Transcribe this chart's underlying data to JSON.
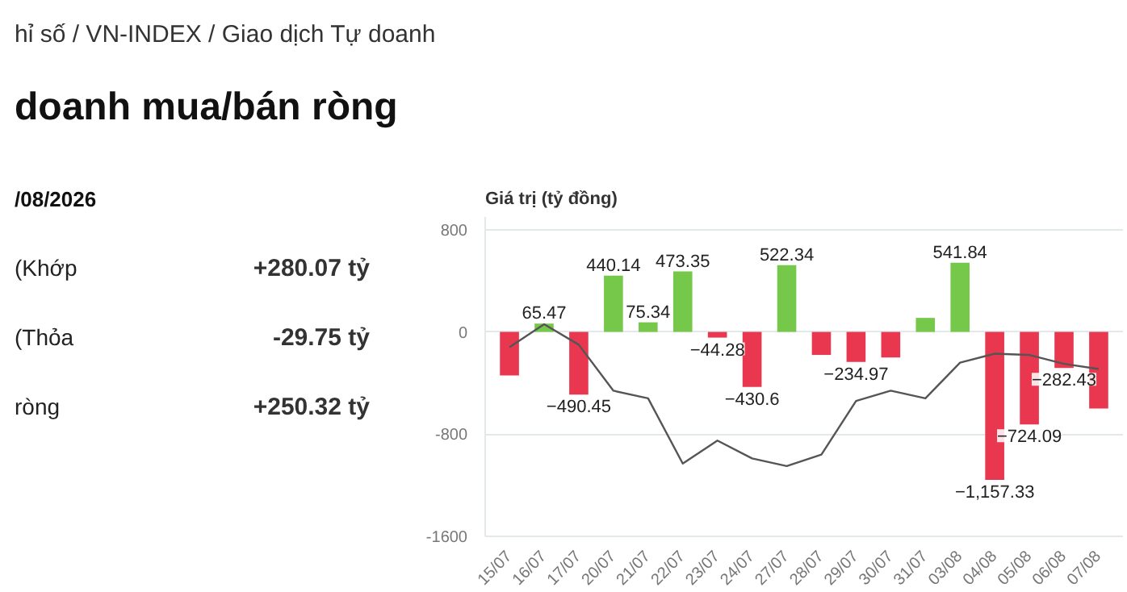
{
  "chart_data": {
    "type": "bar",
    "ylabel": "Giá trị (tỷ đồng)",
    "categories": [
      "15/07",
      "16/07",
      "17/07",
      "20/07",
      "21/07",
      "22/07",
      "23/07",
      "24/07",
      "27/07",
      "28/07",
      "29/07",
      "30/07",
      "31/07",
      "03/08",
      "04/08",
      "05/08",
      "06/08",
      "07/08"
    ],
    "series": [
      {
        "colors": [
          "#e8374f",
          "#76c84b",
          "#e8374f",
          "#76c84b",
          "#76c84b",
          "#76c84b",
          "#e8374f",
          "#e8374f",
          "#76c84b",
          "#e8374f",
          "#e8374f",
          "#e8374f",
          "#76c84b",
          "#76c84b",
          "#e8374f",
          "#e8374f",
          "#e8374f",
          "#e8374f"
        ],
        "values": [
          -340,
          65.47,
          -490.45,
          440.14,
          75.34,
          473.35,
          -44.28,
          -430.6,
          522.34,
          -180,
          -234.97,
          -200,
          110,
          541.84,
          -1157.33,
          -724.09,
          -282.43,
          -600
        ],
        "value_labels": [
          null,
          "65.47",
          "−490.45",
          "440.14",
          "75.34",
          "473.35",
          "−44.28",
          "−430.6",
          "522.34",
          null,
          "−234.97",
          null,
          null,
          "541.84",
          "−1,157.33",
          "−724.09",
          "−282.43",
          null
        ]
      },
      {
        "type": "line",
        "color": "#555555",
        "values": [
          -120,
          60,
          -100,
          -460,
          -520,
          -1030,
          -850,
          -990,
          -1050,
          -960,
          -540,
          -460,
          -520,
          -240,
          -170,
          -180,
          -250,
          -290
        ]
      }
    ],
    "ylim": [
      -1600,
      900
    ],
    "yticks": [
      -1600,
      -800,
      0,
      800
    ],
    "grid": "y",
    "annotations": [
      "hỉ số / VN-INDEX / Giao dịch Tự doanh",
      "doanh mua/bán ròng",
      "/08/2026",
      "(Khớp",
      "+280.07 tỷ",
      "(Thỏa",
      "-29.75 tỷ",
      "ròng",
      "+250.32 tỷ"
    ]
  }
}
